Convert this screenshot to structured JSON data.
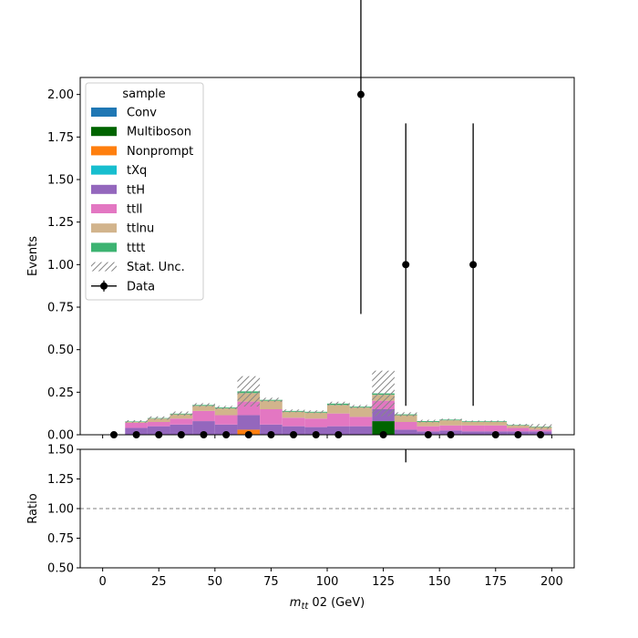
{
  "chart_data": [
    {
      "type": "bar",
      "stacked": true,
      "xlabel": "m_{tt} 02 (GeV)",
      "ylabel": "Events",
      "xlim": [
        -10,
        210
      ],
      "ylim": [
        0,
        2.1
      ],
      "xticks": [
        0,
        25,
        50,
        75,
        100,
        125,
        150,
        175,
        200
      ],
      "yticks": [
        0.0,
        0.25,
        0.5,
        0.75,
        1.0,
        1.25,
        1.5,
        1.75,
        2.0
      ],
      "ytick_labels": [
        "0.00",
        "0.25",
        "0.50",
        "0.75",
        "1.00",
        "1.25",
        "1.50",
        "1.75",
        "2.00"
      ],
      "legend_title": "sample",
      "legend_position": "top-left",
      "bin_edges": [
        0,
        10,
        20,
        30,
        40,
        50,
        60,
        70,
        80,
        90,
        100,
        110,
        120,
        130,
        140,
        150,
        160,
        170,
        180,
        190,
        200
      ],
      "series": [
        {
          "name": "Conv",
          "color": "#1f77b4",
          "values": [
            0,
            0,
            0,
            0,
            0,
            0,
            0,
            0,
            0,
            0,
            0,
            0,
            0,
            0,
            0,
            0,
            0,
            0,
            0,
            0
          ]
        },
        {
          "name": "Multiboson",
          "color": "#006400",
          "values": [
            0,
            0,
            0,
            0,
            0,
            0,
            0,
            0,
            0,
            0,
            0,
            0,
            0.08,
            0,
            0,
            0,
            0,
            0,
            0,
            0
          ]
        },
        {
          "name": "Nonprompt",
          "color": "#ff7f0e",
          "values": [
            0,
            0,
            0,
            0,
            0,
            0,
            0.03,
            0,
            0,
            0,
            0,
            0,
            0,
            0,
            0,
            0,
            0,
            0,
            0,
            0
          ]
        },
        {
          "name": "tXq",
          "color": "#17becf",
          "values": [
            0,
            0,
            0,
            0,
            0,
            0,
            0,
            0,
            0,
            0,
            0,
            0,
            0,
            0,
            0,
            0,
            0,
            0,
            0,
            0
          ]
        },
        {
          "name": "ttH",
          "color": "#9467bd",
          "values": [
            0,
            0.04,
            0.05,
            0.06,
            0.08,
            0.06,
            0.085,
            0.06,
            0.05,
            0.045,
            0.05,
            0.05,
            0.07,
            0.03,
            0.02,
            0.025,
            0.02,
            0.02,
            0.02,
            0.02
          ]
        },
        {
          "name": "ttll",
          "color": "#e377c2",
          "values": [
            0,
            0.03,
            0.025,
            0.035,
            0.06,
            0.055,
            0.08,
            0.09,
            0.05,
            0.05,
            0.075,
            0.055,
            0.05,
            0.045,
            0.03,
            0.03,
            0.035,
            0.035,
            0.02,
            0.01
          ]
        },
        {
          "name": "ttlnu",
          "color": "#d2b48c",
          "values": [
            0,
            0.005,
            0.02,
            0.025,
            0.03,
            0.04,
            0.05,
            0.05,
            0.035,
            0.035,
            0.05,
            0.055,
            0.035,
            0.04,
            0.025,
            0.03,
            0.02,
            0.02,
            0.015,
            0.015
          ]
        },
        {
          "name": "tttt",
          "color": "#3cb371",
          "values": [
            0,
            0.003,
            0.003,
            0.004,
            0.005,
            0.005,
            0.01,
            0.005,
            0.005,
            0.005,
            0.008,
            0.005,
            0.008,
            0.005,
            0.005,
            0.004,
            0.004,
            0.004,
            0.003,
            0.003
          ]
        }
      ],
      "stat_unc": {
        "name": "Stat. Unc.",
        "rel": [
          0,
          0.1,
          0.1,
          0.1,
          0.06,
          0.06,
          0.35,
          0.06,
          0.06,
          0.06,
          0.06,
          0.06,
          0.55,
          0.1,
          0.1,
          0.06,
          0.06,
          0.06,
          0.1,
          0.3
        ]
      },
      "data_points": {
        "name": "Data",
        "x": [
          5,
          15,
          25,
          35,
          45,
          55,
          65,
          75,
          85,
          95,
          105,
          115,
          125,
          135,
          145,
          155,
          165,
          175,
          185,
          195
        ],
        "y": [
          0,
          0,
          0,
          0,
          0,
          0,
          0,
          0,
          0,
          0,
          0,
          2,
          0,
          1,
          0,
          0,
          1,
          0,
          0,
          0
        ],
        "yerr": [
          0,
          0,
          0,
          0,
          0,
          0,
          0,
          0,
          0,
          0,
          0,
          1.29,
          0,
          0.83,
          0,
          0,
          0.83,
          0,
          0,
          0
        ],
        "color": "#000000"
      }
    },
    {
      "type": "line",
      "xlabel": "m_{tt} 02 (GeV)",
      "ylabel": "Ratio",
      "xlim": [
        -10,
        210
      ],
      "ylim": [
        0.5,
        1.5
      ],
      "xticks": [
        0,
        25,
        50,
        75,
        100,
        125,
        150,
        175,
        200
      ],
      "yticks": [
        0.5,
        0.75,
        1.0,
        1.25,
        1.5
      ],
      "ytick_labels": [
        "0.50",
        "0.75",
        "1.00",
        "1.25",
        "1.50"
      ],
      "reference_line": 1.0,
      "ratio_errbar": {
        "x": 135,
        "ylow": 1.39,
        "yhigh": 1.5
      }
    }
  ]
}
